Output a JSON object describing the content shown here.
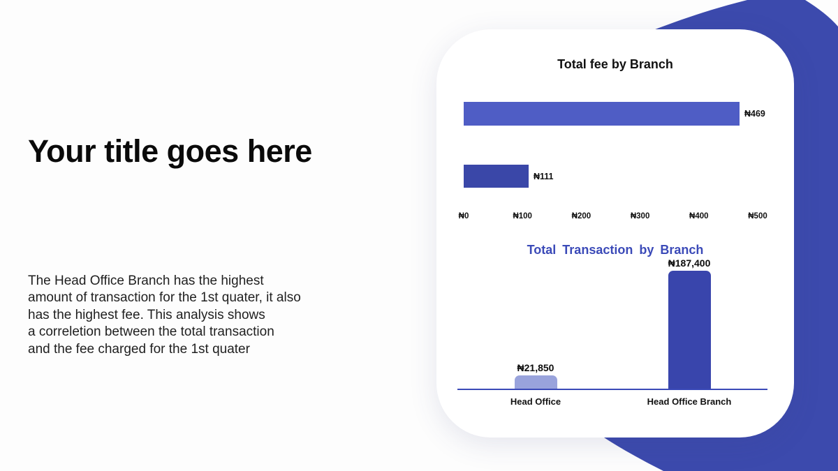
{
  "page": {
    "title": "Your title goes here",
    "body": "The Head Office Branch has the highest\namount of transaction for the 1st quater, it also\nhas the highest fee. This analysis shows\na correletion between the total transaction\nand the fee charged for the 1st quater"
  },
  "colors": {
    "background_shape": "#3c4aad",
    "fee_bar_top": "#4f5dc5",
    "fee_bar_bottom": "#3a47a8",
    "transaction_bar_light": "#99a3dc",
    "transaction_bar_dark": "#3945ac",
    "transaction_title": "#3b4ab8",
    "axis_line": "#3b4ab8"
  },
  "chart_data": [
    {
      "type": "bar",
      "orientation": "horizontal",
      "title": "Total fee by Branch",
      "values": [
        469,
        111
      ],
      "data_labels": [
        "₦469",
        "₦111"
      ],
      "bar_colors": [
        "#4f5dc5",
        "#3a47a8"
      ],
      "xticks": [
        "₦0",
        "₦100",
        "₦200",
        "₦300",
        "₦400",
        "₦500"
      ],
      "xlim": [
        0,
        500
      ],
      "grid": "off",
      "legend": "none"
    },
    {
      "type": "bar",
      "orientation": "vertical",
      "title": "Total  Transaction by  Branch",
      "categories": [
        "Head Office",
        "Head Office Branch"
      ],
      "values": [
        21850,
        187400
      ],
      "data_labels": [
        "₦21,850",
        "₦187,400"
      ],
      "bar_colors": [
        "#99a3dc",
        "#3945ac"
      ],
      "ylim": [
        0,
        190000
      ],
      "grid": "off",
      "legend": "none"
    }
  ]
}
